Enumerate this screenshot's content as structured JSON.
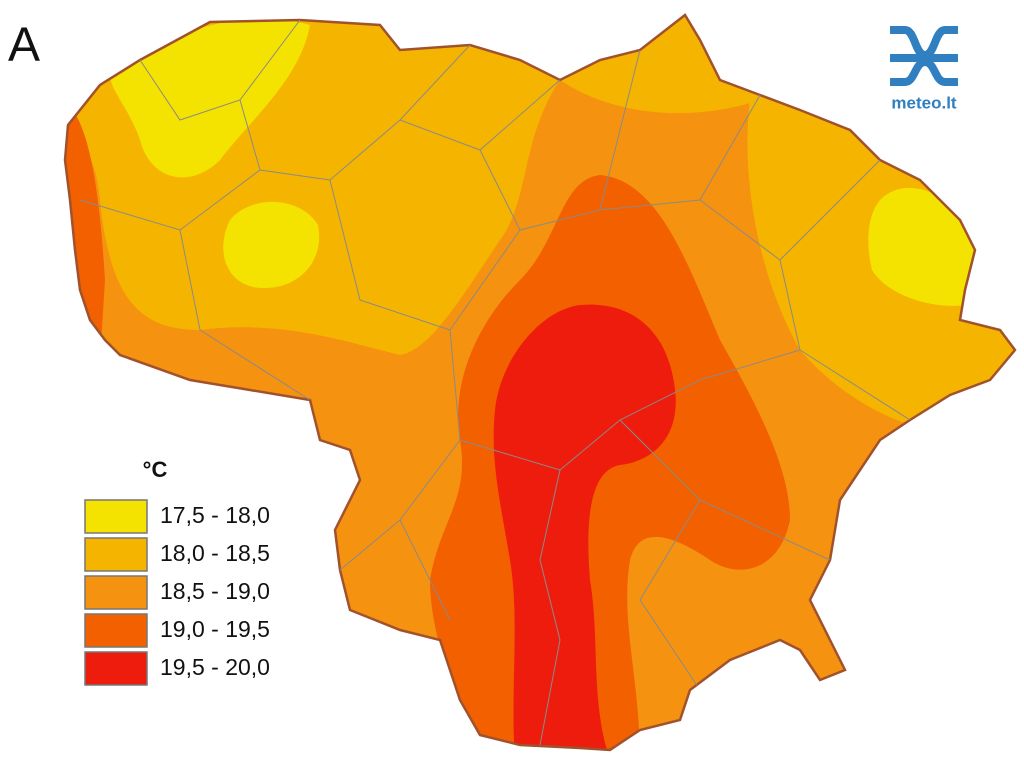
{
  "panel_label": "A",
  "legend": {
    "title": "°C",
    "items": [
      {
        "label": "17,5 - 18,0",
        "color": "#f4e200"
      },
      {
        "label": "18,0 - 18,5",
        "color": "#f5b400"
      },
      {
        "label": "18,5 - 19,0",
        "color": "#f59210"
      },
      {
        "label": "19,0 - 19,5",
        "color": "#f26000"
      },
      {
        "label": "19,5 - 20,0",
        "color": "#ee1c0c"
      }
    ]
  },
  "logo": {
    "text": "meteo.lt"
  }
}
